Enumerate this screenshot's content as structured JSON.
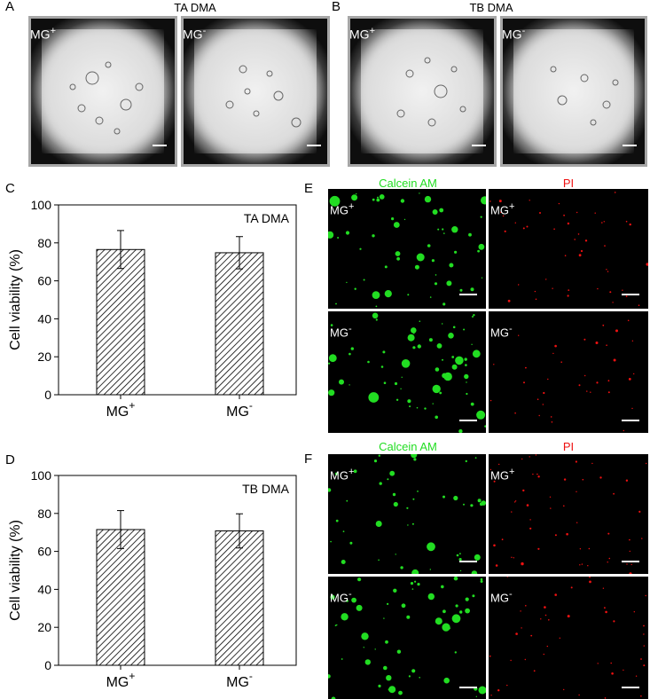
{
  "panel_letters": {
    "a": "A",
    "b": "B",
    "c": "C",
    "d": "D",
    "e": "E",
    "f": "F"
  },
  "titles": {
    "ta_dma": "TA DMA",
    "tb_dma": "TB DMA"
  },
  "labels": {
    "mg_base": "MG",
    "plus": "+",
    "minus": "-"
  },
  "channels": {
    "calcein": "Calcein AM",
    "pi": "PI"
  },
  "colors": {
    "calcein": "#22dd22",
    "pi": "#ee1111"
  },
  "chart_data": [
    {
      "type": "bar",
      "panel": "C",
      "categories": [
        "MG+",
        "MG-"
      ],
      "values": [
        76.5,
        74.8
      ],
      "errors": [
        10,
        8.5
      ],
      "annotation": "TA DMA",
      "ylabel": "Cell viability (%)",
      "ylim": [
        0,
        100
      ],
      "yticks": [
        0,
        20,
        40,
        60,
        80,
        100
      ],
      "fill": "diagonal hatch",
      "grid": false
    },
    {
      "type": "bar",
      "panel": "D",
      "categories": [
        "MG+",
        "MG-"
      ],
      "values": [
        71.5,
        70.8
      ],
      "errors": [
        10,
        9
      ],
      "annotation": "TB DMA",
      "ylabel": "Cell viability (%)",
      "ylim": [
        0,
        100
      ],
      "yticks": [
        0,
        20,
        40,
        60,
        80,
        100
      ],
      "fill": "diagonal hatch",
      "grid": false
    }
  ]
}
